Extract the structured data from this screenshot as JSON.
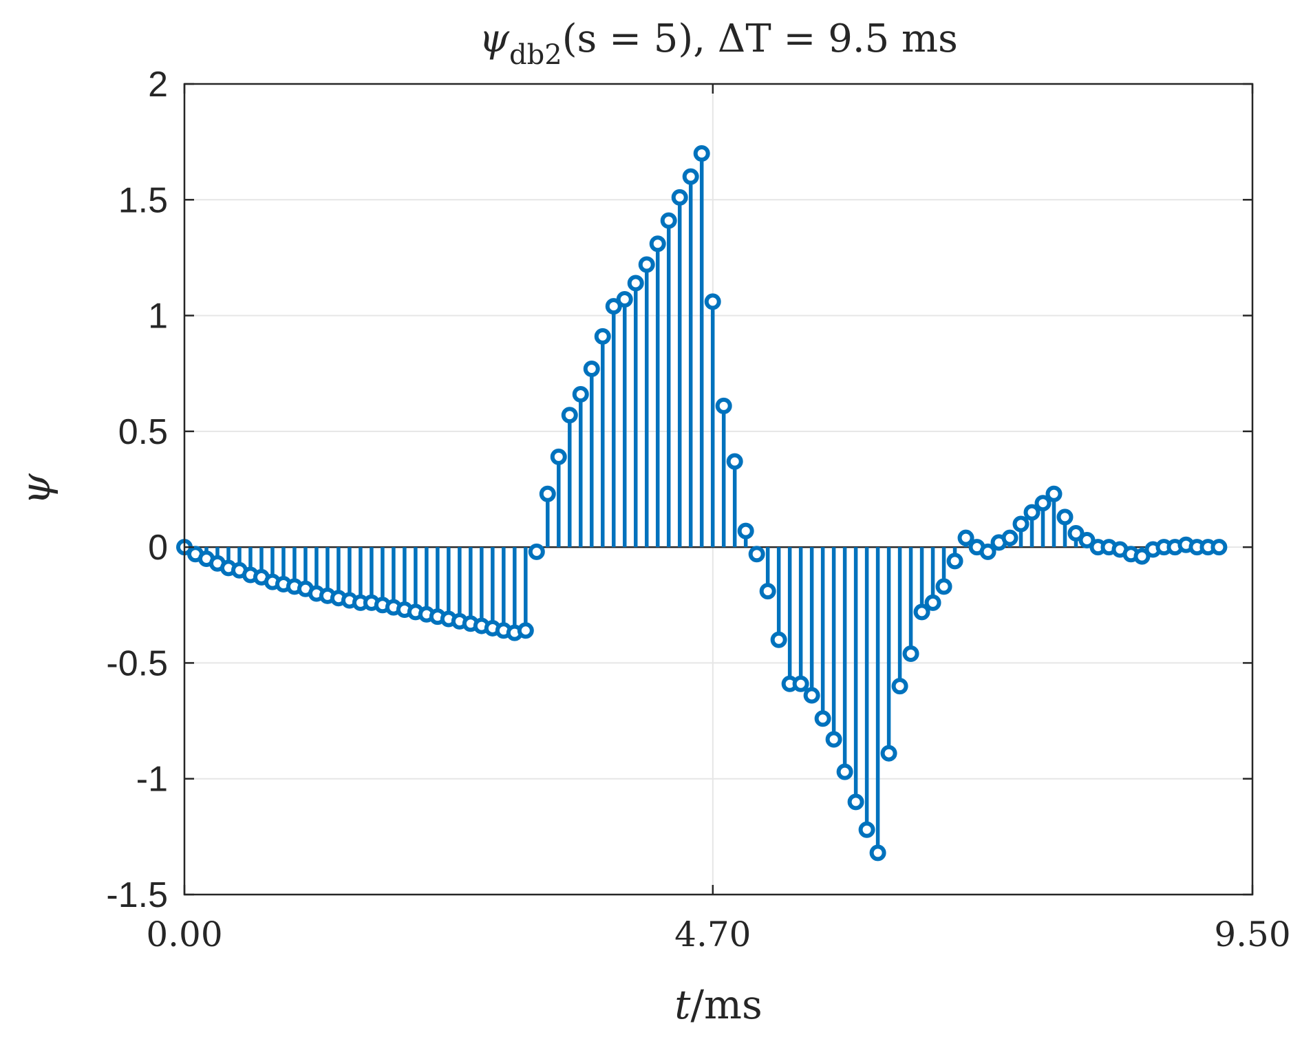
{
  "chart_data": {
    "type": "stem",
    "title": "ψ_db2(s = 5), ΔT = 9.5 ms",
    "title_parts": {
      "psi": "ψ",
      "subscript": "db2",
      "rest": "(s = 5), ΔT = 9.5 ms"
    },
    "xlabel": "t/ms",
    "xlabel_parts": {
      "var": "t",
      "unit": "/ms"
    },
    "ylabel": "ψ",
    "xlim": [
      0,
      9.5
    ],
    "ylim": [
      -1.5,
      2
    ],
    "xticks": [
      0,
      4.7,
      9.5
    ],
    "xtick_labels": [
      "0.00",
      "4.70",
      "9.50"
    ],
    "yticks": [
      -1.5,
      -1,
      -0.5,
      0,
      0.5,
      1,
      1.5,
      2
    ],
    "ytick_labels": [
      "-1.5",
      "-1",
      "-0.5",
      "0",
      "0.5",
      "1",
      "1.5",
      "2"
    ],
    "grid": true,
    "color": "#0072BD",
    "x_start": 0,
    "x_step": 0.0979,
    "values": [
      0.0,
      -0.03,
      -0.05,
      -0.07,
      -0.09,
      -0.1,
      -0.12,
      -0.13,
      -0.15,
      -0.16,
      -0.17,
      -0.18,
      -0.2,
      -0.21,
      -0.22,
      -0.23,
      -0.24,
      -0.24,
      -0.25,
      -0.26,
      -0.27,
      -0.28,
      -0.29,
      -0.3,
      -0.31,
      -0.32,
      -0.33,
      -0.34,
      -0.35,
      -0.36,
      -0.37,
      -0.36,
      -0.02,
      0.23,
      0.39,
      0.57,
      0.66,
      0.77,
      0.91,
      1.04,
      1.07,
      1.14,
      1.22,
      1.31,
      1.41,
      1.51,
      1.6,
      1.7,
      1.06,
      0.61,
      0.37,
      0.07,
      -0.03,
      -0.19,
      -0.4,
      -0.59,
      -0.59,
      -0.64,
      -0.74,
      -0.83,
      -0.97,
      -1.1,
      -1.22,
      -1.32,
      -0.89,
      -0.6,
      -0.46,
      -0.28,
      -0.24,
      -0.17,
      -0.06,
      0.04,
      0.0,
      -0.02,
      0.02,
      0.04,
      0.1,
      0.15,
      0.19,
      0.23,
      0.13,
      0.06,
      0.03,
      0.0,
      0.0,
      -0.01,
      -0.03,
      -0.04,
      -0.01,
      0.0,
      0.0,
      0.01,
      0.0,
      0.0,
      0.0
    ]
  }
}
